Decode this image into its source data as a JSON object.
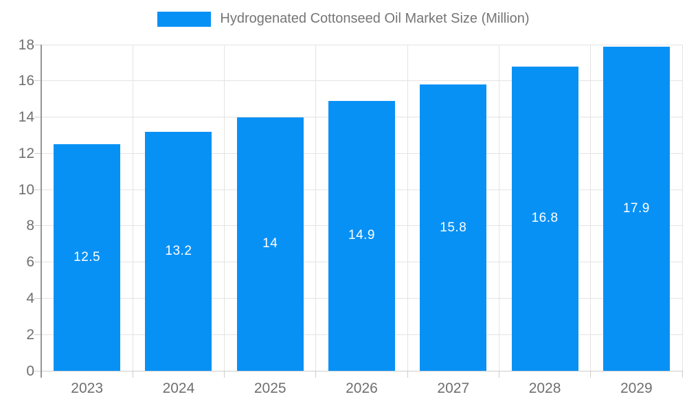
{
  "chart_data": {
    "type": "bar",
    "title": "Hydrogenated Cottonseed Oil Market Size (Million)",
    "categories": [
      "2023",
      "2024",
      "2025",
      "2026",
      "2027",
      "2028",
      "2029"
    ],
    "values": [
      12.5,
      13.2,
      14,
      14.9,
      15.8,
      16.8,
      17.9
    ],
    "xlabel": "",
    "ylabel": "",
    "ylim": [
      0,
      18
    ],
    "ytick_step": 2,
    "grid": "horizontal-and-vertical",
    "legend_position": "top-center",
    "bar_color": "#0891f5",
    "value_label_color": "#ffffff",
    "axis_text_color": "#6f6f6f",
    "legend_text_color": "#757575",
    "gridline_color": "#e3e3e3"
  }
}
